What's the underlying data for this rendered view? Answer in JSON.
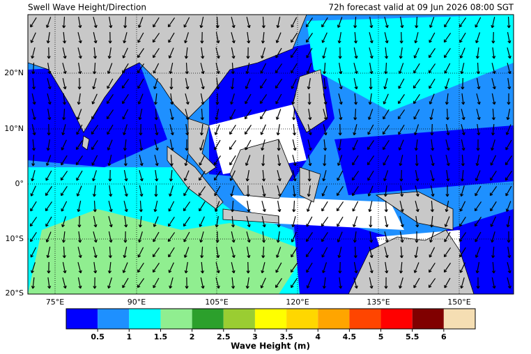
{
  "header": {
    "title": "Swell Wave Height/Direction",
    "valid": "72h forecast valid at 09 Jun 2026 08:00 SGT"
  },
  "map": {
    "lat_labels": [
      "20°N",
      "10°N",
      "0°",
      "10°S",
      "20°S"
    ],
    "lon_labels": [
      "75°E",
      "90°E",
      "105°E",
      "120°E",
      "135°E",
      "150°E"
    ]
  },
  "colorbar": {
    "label": "Wave Height (m)",
    "ticks": [
      0.5,
      1,
      1.5,
      2,
      2.5,
      3,
      3.5,
      4,
      4.5,
      5,
      5.5,
      6
    ],
    "colors": [
      "#0000ff",
      "#1e90ff",
      "#00ffff",
      "#90ee90",
      "#2ca02c",
      "#9acd32",
      "#ffff00",
      "#ffd700",
      "#ffa500",
      "#ff4500",
      "#ff0000",
      "#800000",
      "#f5deb3"
    ]
  }
}
